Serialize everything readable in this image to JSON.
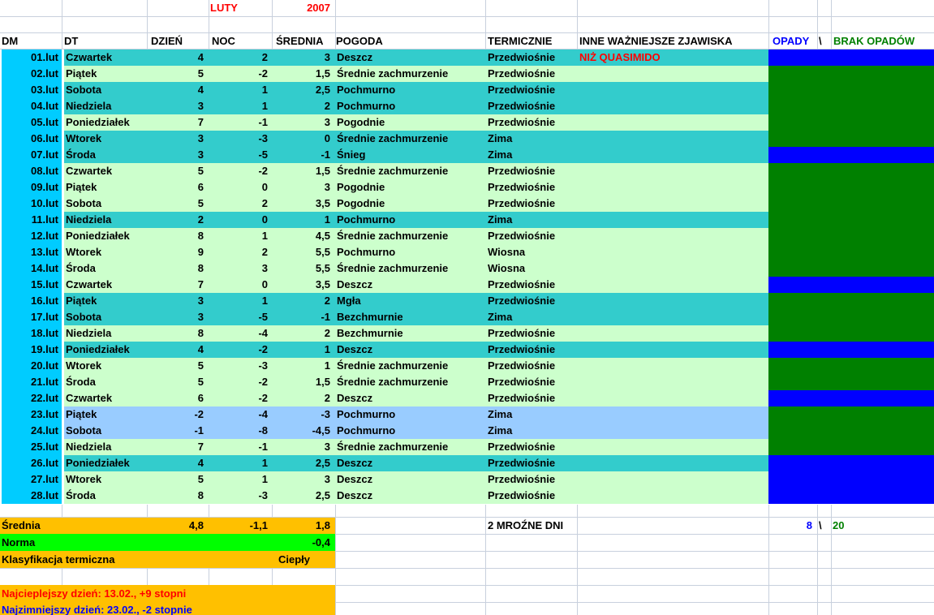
{
  "title": {
    "month": "LUTY",
    "year": "2007"
  },
  "columns": {
    "dm": "DM",
    "dt": "DT",
    "day": "DZIEŃ",
    "night": "NOC",
    "avg": "ŚREDNIA",
    "weather": "POGODA",
    "thermal": "TERMICZNIE",
    "events": "INNE WAŻNIEJSZE ZJAWISKA",
    "opady": "OPADY",
    "separator": "\\",
    "brak": "BRAK OPADÓW"
  },
  "rows": [
    {
      "dm": "01.lut",
      "dt": "Czwartek",
      "day": "4",
      "night": "2",
      "avg": "3",
      "weather": "Deszcz",
      "thermal": "Przedwiośnie",
      "events": "NIŻ QUASIMIDO",
      "bg": "teal",
      "precip": true
    },
    {
      "dm": "02.lut",
      "dt": "Piątek",
      "day": "5",
      "night": "-2",
      "avg": "1,5",
      "weather": "Średnie zachmurzenie",
      "thermal": "Przedwiośnie",
      "events": "",
      "bg": "green",
      "precip": false
    },
    {
      "dm": "03.lut",
      "dt": "Sobota",
      "day": "4",
      "night": "1",
      "avg": "2,5",
      "weather": "Pochmurno",
      "thermal": "Przedwiośnie",
      "events": "",
      "bg": "teal",
      "precip": false
    },
    {
      "dm": "04.lut",
      "dt": "Niedziela",
      "day": "3",
      "night": "1",
      "avg": "2",
      "weather": "Pochmurno",
      "thermal": "Przedwiośnie",
      "events": "",
      "bg": "teal",
      "precip": false
    },
    {
      "dm": "05.lut",
      "dt": "Poniedziałek",
      "day": "7",
      "night": "-1",
      "avg": "3",
      "weather": "Pogodnie",
      "thermal": "Przedwiośnie",
      "events": "",
      "bg": "green",
      "precip": false
    },
    {
      "dm": "06.lut",
      "dt": "Wtorek",
      "day": "3",
      "night": "-3",
      "avg": "0",
      "weather": "Średnie zachmurzenie",
      "thermal": "Zima",
      "events": "",
      "bg": "teal",
      "precip": false
    },
    {
      "dm": "07.lut",
      "dt": "Środa",
      "day": "3",
      "night": "-5",
      "avg": "-1",
      "weather": "Śnieg",
      "thermal": "Zima",
      "events": "",
      "bg": "teal",
      "precip": true
    },
    {
      "dm": "08.lut",
      "dt": "Czwartek",
      "day": "5",
      "night": "-2",
      "avg": "1,5",
      "weather": "Średnie zachmurzenie",
      "thermal": "Przedwiośnie",
      "events": "",
      "bg": "green",
      "precip": false
    },
    {
      "dm": "09.lut",
      "dt": "Piątek",
      "day": "6",
      "night": "0",
      "avg": "3",
      "weather": "Pogodnie",
      "thermal": "Przedwiośnie",
      "events": "",
      "bg": "green",
      "precip": false
    },
    {
      "dm": "10.lut",
      "dt": "Sobota",
      "day": "5",
      "night": "2",
      "avg": "3,5",
      "weather": "Pogodnie",
      "thermal": "Przedwiośnie",
      "events": "",
      "bg": "green",
      "precip": false
    },
    {
      "dm": "11.lut",
      "dt": "Niedziela",
      "day": "2",
      "night": "0",
      "avg": "1",
      "weather": "Pochmurno",
      "thermal": "Zima",
      "events": "",
      "bg": "teal",
      "precip": false
    },
    {
      "dm": "12.lut",
      "dt": "Poniedziałek",
      "day": "8",
      "night": "1",
      "avg": "4,5",
      "weather": "Średnie zachmurzenie",
      "thermal": "Przedwiośnie",
      "events": "",
      "bg": "green",
      "precip": false
    },
    {
      "dm": "13.lut",
      "dt": "Wtorek",
      "day": "9",
      "night": "2",
      "avg": "5,5",
      "weather": "Pochmurno",
      "thermal": "Wiosna",
      "events": "",
      "bg": "green",
      "precip": false
    },
    {
      "dm": "14.lut",
      "dt": "Środa",
      "day": "8",
      "night": "3",
      "avg": "5,5",
      "weather": "Średnie zachmurzenie",
      "thermal": "Wiosna",
      "events": "",
      "bg": "green",
      "precip": false
    },
    {
      "dm": "15.lut",
      "dt": "Czwartek",
      "day": "7",
      "night": "0",
      "avg": "3,5",
      "weather": "Deszcz",
      "thermal": "Przedwiośnie",
      "events": "",
      "bg": "green",
      "precip": true
    },
    {
      "dm": "16.lut",
      "dt": "Piątek",
      "day": "3",
      "night": "1",
      "avg": "2",
      "weather": "Mgła",
      "thermal": "Przedwiośnie",
      "events": "",
      "bg": "teal",
      "precip": false
    },
    {
      "dm": "17.lut",
      "dt": "Sobota",
      "day": "3",
      "night": "-5",
      "avg": "-1",
      "weather": "Bezchmurnie",
      "thermal": "Zima",
      "events": "",
      "bg": "teal",
      "precip": false
    },
    {
      "dm": "18.lut",
      "dt": "Niedziela",
      "day": "8",
      "night": "-4",
      "avg": "2",
      "weather": "Bezchmurnie",
      "thermal": "Przedwiośnie",
      "events": "",
      "bg": "green",
      "precip": false
    },
    {
      "dm": "19.lut",
      "dt": "Poniedziałek",
      "day": "4",
      "night": "-2",
      "avg": "1",
      "weather": "Deszcz",
      "thermal": "Przedwiośnie",
      "events": "",
      "bg": "teal",
      "precip": true
    },
    {
      "dm": "20.lut",
      "dt": "Wtorek",
      "day": "5",
      "night": "-3",
      "avg": "1",
      "weather": "Średnie zachmurzenie",
      "thermal": "Przedwiośnie",
      "events": "",
      "bg": "green",
      "precip": false
    },
    {
      "dm": "21.lut",
      "dt": "Środa",
      "day": "5",
      "night": "-2",
      "avg": "1,5",
      "weather": "Średnie zachmurzenie",
      "thermal": "Przedwiośnie",
      "events": "",
      "bg": "green",
      "precip": false
    },
    {
      "dm": "22.lut",
      "dt": "Czwartek",
      "day": "6",
      "night": "-2",
      "avg": "2",
      "weather": "Deszcz",
      "thermal": "Przedwiośnie",
      "events": "",
      "bg": "green",
      "precip": true
    },
    {
      "dm": "23.lut",
      "dt": "Piątek",
      "day": "-2",
      "night": "-4",
      "avg": "-3",
      "weather": "Pochmurno",
      "thermal": "Zima",
      "events": "",
      "bg": "frost",
      "precip": false
    },
    {
      "dm": "24.lut",
      "dt": "Sobota",
      "day": "-1",
      "night": "-8",
      "avg": "-4,5",
      "weather": "Pochmurno",
      "thermal": "Zima",
      "events": "",
      "bg": "frost",
      "precip": false
    },
    {
      "dm": "25.lut",
      "dt": "Niedziela",
      "day": "7",
      "night": "-1",
      "avg": "3",
      "weather": "Średnie zachmurzenie",
      "thermal": "Przedwiośnie",
      "events": "",
      "bg": "green",
      "precip": false
    },
    {
      "dm": "26.lut",
      "dt": "Poniedziałek",
      "day": "4",
      "night": "1",
      "avg": "2,5",
      "weather": "Deszcz",
      "thermal": "Przedwiośnie",
      "events": "",
      "bg": "teal",
      "precip": true
    },
    {
      "dm": "27.lut",
      "dt": "Wtorek",
      "day": "5",
      "night": "1",
      "avg": "3",
      "weather": "Deszcz",
      "thermal": "Przedwiośnie",
      "events": "",
      "bg": "green",
      "precip": true
    },
    {
      "dm": "28.lut",
      "dt": "Środa",
      "day": "8",
      "night": "-3",
      "avg": "2,5",
      "weather": "Deszcz",
      "thermal": "Przedwiośnie",
      "events": "",
      "bg": "green",
      "precip": true
    }
  ],
  "summary": {
    "srednia_label": "Średnia",
    "srednia_day": "4,8",
    "srednia_night": "-1,1",
    "srednia_avg": "1,8",
    "norma_label": "Norma",
    "norma_value": "-0,4",
    "klasyfikacja_label": "Klasyfikacja termiczna",
    "klasyfikacja_value": "Ciepły",
    "mrozne_dni": "2 MROŹNE DNI",
    "opady_count": "8",
    "count_separator": "\\",
    "brak_count": "20",
    "warmest": "Najcieplejszy dzień: 13.02., +9 stopni",
    "coldest": "Najzimniejszy dzień: 23.02., -2 stopnie"
  },
  "colors": {
    "date_column": "#00CCFF",
    "row_teal": "#33CCCC",
    "row_green": "#CCFFCC",
    "row_frost": "#99CCFF",
    "precip": "#0000FF",
    "no_precip": "#008000",
    "summary_orange": "#FFC000",
    "norma_green": "#00FF00",
    "accent_red": "#FF0000",
    "accent_blue": "#0000FF",
    "accent_green": "#008000"
  }
}
